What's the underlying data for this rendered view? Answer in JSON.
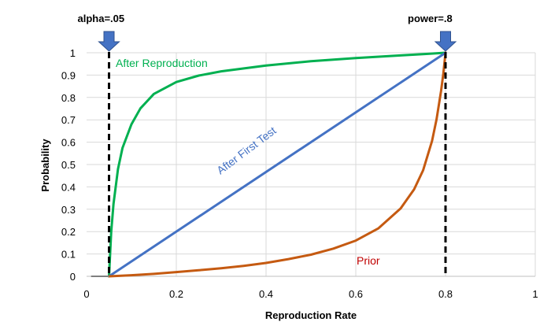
{
  "chart_data": {
    "type": "line",
    "title": "",
    "xlabel": "Reproduction Rate",
    "ylabel": "Probability",
    "xlim": [
      0,
      1
    ],
    "ylim": [
      0,
      1
    ],
    "x_ticks": [
      "0",
      "0.2",
      "0.4",
      "0.6",
      "0.8",
      "1"
    ],
    "y_ticks": [
      "0",
      "0.1",
      "0.2",
      "0.3",
      "0.4",
      "0.5",
      "0.6",
      "0.7",
      "0.8",
      "0.9",
      "1"
    ],
    "grid": true,
    "series": [
      {
        "name": "After Reproduction",
        "color": "#00b050",
        "x": [
          0.05,
          0.055,
          0.06,
          0.07,
          0.08,
          0.1,
          0.12,
          0.15,
          0.2,
          0.25,
          0.3,
          0.4,
          0.5,
          0.6,
          0.7,
          0.75,
          0.8
        ],
        "y": [
          0.0,
          0.2,
          0.324,
          0.48,
          0.574,
          0.68,
          0.751,
          0.816,
          0.869,
          0.898,
          0.917,
          0.943,
          0.962,
          0.976,
          0.988,
          0.994,
          1.0
        ]
      },
      {
        "name": "After First Test",
        "color": "#4472c4",
        "x": [
          0.05,
          0.8
        ],
        "y": [
          0.0,
          1.0
        ]
      },
      {
        "name": "Prior",
        "color": "#c55a11",
        "x": [
          0.05,
          0.1,
          0.15,
          0.2,
          0.25,
          0.3,
          0.35,
          0.4,
          0.45,
          0.5,
          0.55,
          0.6,
          0.65,
          0.7,
          0.73,
          0.75,
          0.77,
          0.78,
          0.79,
          0.795,
          0.8
        ],
        "y": [
          0.0,
          0.005,
          0.011,
          0.019,
          0.027,
          0.036,
          0.047,
          0.06,
          0.077,
          0.097,
          0.124,
          0.16,
          0.214,
          0.304,
          0.389,
          0.474,
          0.606,
          0.702,
          0.828,
          0.906,
          1.0
        ]
      }
    ],
    "annotations": [
      {
        "label": "alpha=.05",
        "x": 0.05
      },
      {
        "label": "power=.8",
        "x": 0.8
      }
    ]
  }
}
